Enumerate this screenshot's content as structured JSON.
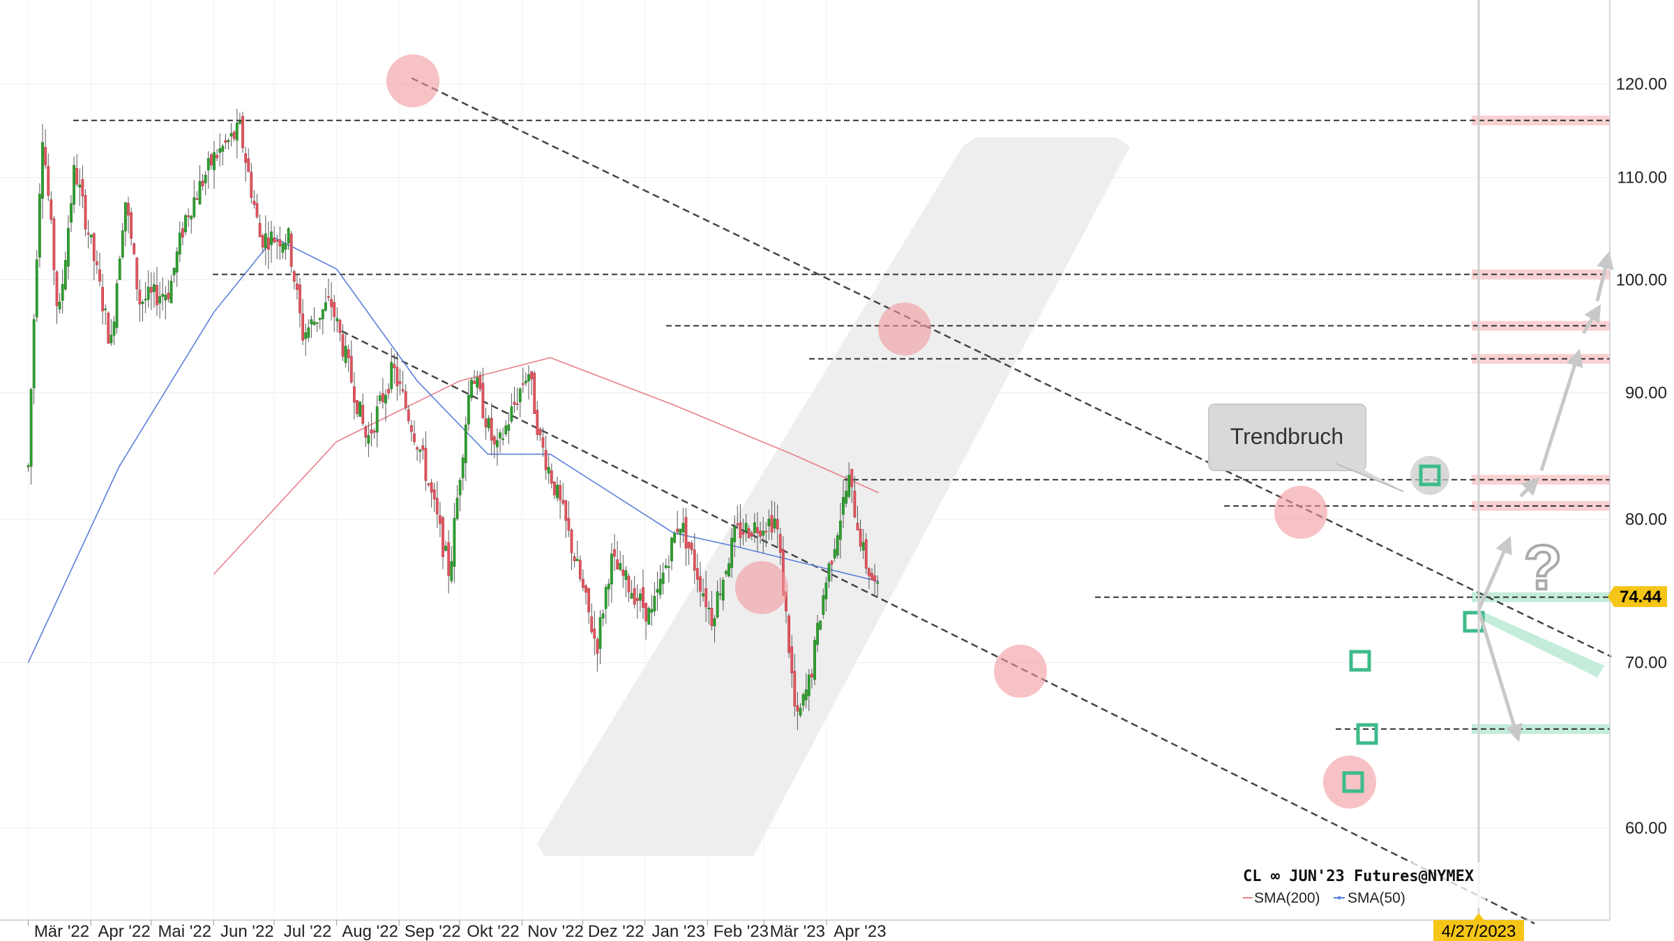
{
  "chart_data": {
    "type": "candlestick",
    "instrument_label": "CL ∞ JUN'23 Futures@NYMEX",
    "last_price": "74.44",
    "last_date": "4/27/2023",
    "y_ticks": [
      "60.00",
      "70.00",
      "80.00",
      "90.00",
      "100.00",
      "110.00",
      "120.00"
    ],
    "x_ticks": [
      "Mär '22",
      "Apr '22",
      "Mai '22",
      "Jun '22",
      "Jul '22",
      "Aug '22",
      "Sep '22",
      "Okt '22",
      "Nov '22",
      "Dez '22",
      "Jan '23",
      "Feb '23",
      "Mär '23",
      "Apr '23"
    ],
    "ylim": [
      58,
      122
    ],
    "scale": "log",
    "grid": true,
    "indicators": [
      {
        "name": "SMA(200)",
        "color": "#e8808a"
      },
      {
        "name": "SMA(50)",
        "color": "#5b7fd9"
      }
    ],
    "annotations": {
      "callout": "Trendbruch",
      "question_mark": "?"
    },
    "horizontal_levels": [
      116.0,
      100.5,
      95.8,
      92.9,
      83.0,
      81.0,
      74.4,
      65.8
    ],
    "resistance_zones": [
      116.0,
      100.5,
      95.8,
      92.9,
      83.0,
      81.0
    ],
    "support_zones": [
      74.4,
      65.8
    ],
    "price_path": [
      {
        "date": "2022-03-01",
        "price": 84
      },
      {
        "date": "2022-03-08",
        "price": 115
      },
      {
        "date": "2022-03-16",
        "price": 96
      },
      {
        "date": "2022-03-24",
        "price": 111
      },
      {
        "date": "2022-04-11",
        "price": 94
      },
      {
        "date": "2022-04-18",
        "price": 108
      },
      {
        "date": "2022-04-25",
        "price": 98
      },
      {
        "date": "2022-05-10",
        "price": 99
      },
      {
        "date": "2022-05-18",
        "price": 106
      },
      {
        "date": "2022-06-01",
        "price": 112
      },
      {
        "date": "2022-06-14",
        "price": 115
      },
      {
        "date": "2022-06-24",
        "price": 104
      },
      {
        "date": "2022-07-08",
        "price": 104
      },
      {
        "date": "2022-07-15",
        "price": 95
      },
      {
        "date": "2022-07-29",
        "price": 98
      },
      {
        "date": "2022-08-16",
        "price": 86
      },
      {
        "date": "2022-08-29",
        "price": 92
      },
      {
        "date": "2022-09-12",
        "price": 85
      },
      {
        "date": "2022-09-26",
        "price": 76
      },
      {
        "date": "2022-10-07",
        "price": 92
      },
      {
        "date": "2022-10-19",
        "price": 85
      },
      {
        "date": "2022-11-04",
        "price": 92
      },
      {
        "date": "2022-11-10",
        "price": 86
      },
      {
        "date": "2022-11-22",
        "price": 80
      },
      {
        "date": "2022-12-08",
        "price": 71
      },
      {
        "date": "2022-12-15",
        "price": 77
      },
      {
        "date": "2023-01-04",
        "price": 73
      },
      {
        "date": "2023-01-18",
        "price": 80
      },
      {
        "date": "2023-02-03",
        "price": 73
      },
      {
        "date": "2023-02-15",
        "price": 79
      },
      {
        "date": "2023-03-07",
        "price": 80
      },
      {
        "date": "2023-03-17",
        "price": 66
      },
      {
        "date": "2023-03-24",
        "price": 69
      },
      {
        "date": "2023-03-31",
        "price": 75
      },
      {
        "date": "2023-04-12",
        "price": 83
      },
      {
        "date": "2023-04-20",
        "price": 77
      },
      {
        "date": "2023-04-27",
        "price": 74.44
      }
    ],
    "sma50": [
      {
        "date": "2022-03-01",
        "price": 70
      },
      {
        "date": "2022-04-15",
        "price": 84
      },
      {
        "date": "2022-06-01",
        "price": 97
      },
      {
        "date": "2022-07-01",
        "price": 104
      },
      {
        "date": "2022-08-01",
        "price": 101
      },
      {
        "date": "2022-09-10",
        "price": 91
      },
      {
        "date": "2022-10-15",
        "price": 85
      },
      {
        "date": "2022-11-15",
        "price": 85
      },
      {
        "date": "2022-12-15",
        "price": 82
      },
      {
        "date": "2023-01-15",
        "price": 79
      },
      {
        "date": "2023-02-15",
        "price": 78
      },
      {
        "date": "2023-03-15",
        "price": 77
      },
      {
        "date": "2023-04-27",
        "price": 75.5
      }
    ],
    "sma200": [
      {
        "date": "2022-06-01",
        "price": 76
      },
      {
        "date": "2022-08-01",
        "price": 86
      },
      {
        "date": "2022-10-01",
        "price": 91
      },
      {
        "date": "2022-11-15",
        "price": 93
      },
      {
        "date": "2023-01-15",
        "price": 89
      },
      {
        "date": "2023-03-15",
        "price": 85
      },
      {
        "date": "2023-04-27",
        "price": 82
      }
    ]
  }
}
